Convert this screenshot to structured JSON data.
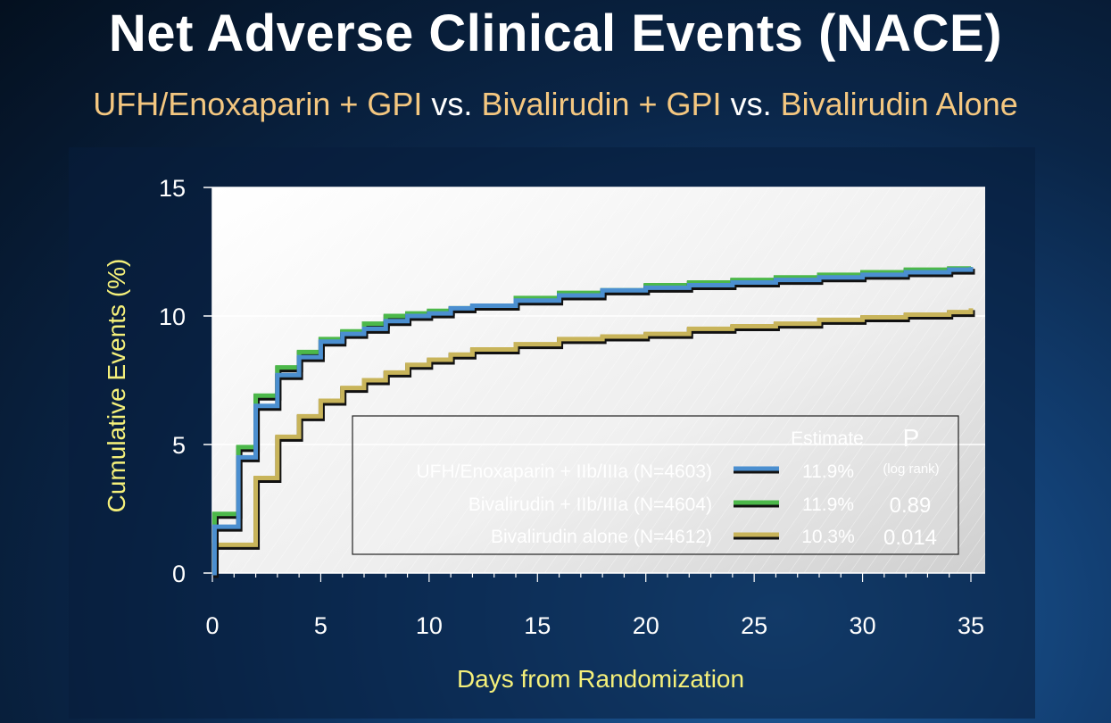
{
  "title": "Net Adverse Clinical Events (NACE)",
  "subtitle": {
    "part1": "UFH/Enoxaparin + GPI",
    "vs1": " vs. ",
    "part2": "Bivalirudin + GPI",
    "vs2": " vs. ",
    "part3": "Bivalirudin Alone"
  },
  "colors": {
    "ufh": "#4b8fd0",
    "biv_gpi": "#4cb84a",
    "biv_alone": "#c8b45a",
    "axis_label": "#f5f07a"
  },
  "legend": {
    "header_estimate": "Estimate",
    "header_p": "P",
    "header_p_sub": "(log rank)",
    "rows": [
      {
        "label": "UFH/Enoxaparin + IIb/IIIa (N=4603)",
        "estimate": "11.9%",
        "p": ""
      },
      {
        "label": "Bivalirudin + IIb/IIIa (N=4604)",
        "estimate": "11.9%",
        "p": "0.89"
      },
      {
        "label": "Bivalirudin alone (N=4612)",
        "estimate": "10.3%",
        "p": "0.014"
      }
    ]
  },
  "chart_data": {
    "type": "line",
    "xlabel": "Days from Randomization",
    "ylabel": "Cumulative Events (%)",
    "xlim": [
      0,
      35
    ],
    "ylim": [
      0,
      15
    ],
    "xticks": [
      0,
      5,
      10,
      15,
      20,
      25,
      30,
      35
    ],
    "yticks": [
      0,
      5,
      10,
      15
    ],
    "grid": "horizontal",
    "legend_position": "bottom-right",
    "series": [
      {
        "name": "UFH/Enoxaparin + IIb/IIIa (N=4603)",
        "x": [
          0,
          0.1,
          1,
          1.2,
          2,
          3,
          4,
          5,
          6,
          7,
          8,
          9,
          10,
          11,
          12,
          14,
          16,
          18,
          20,
          22,
          24,
          26,
          28,
          30,
          32,
          34,
          35
        ],
        "y": [
          0,
          1.8,
          1.8,
          4.5,
          6.5,
          7.7,
          8.4,
          9.0,
          9.3,
          9.5,
          9.8,
          10.0,
          10.1,
          10.3,
          10.4,
          10.6,
          10.8,
          11.0,
          11.1,
          11.2,
          11.3,
          11.4,
          11.5,
          11.6,
          11.7,
          11.8,
          11.9
        ]
      },
      {
        "name": "Bivalirudin + IIb/IIIa (N=4604)",
        "x": [
          0,
          0.1,
          1,
          1.2,
          2,
          3,
          4,
          5,
          6,
          7,
          8,
          9,
          10,
          11,
          12,
          14,
          16,
          18,
          20,
          22,
          24,
          26,
          28,
          30,
          32,
          34,
          35
        ],
        "y": [
          0,
          2.3,
          2.3,
          4.9,
          6.9,
          8.0,
          8.6,
          9.1,
          9.4,
          9.7,
          10.0,
          10.1,
          10.2,
          10.3,
          10.4,
          10.7,
          10.9,
          11.0,
          11.2,
          11.3,
          11.4,
          11.5,
          11.6,
          11.7,
          11.8,
          11.85,
          11.9
        ]
      },
      {
        "name": "Bivalirudin alone (N=4612)",
        "x": [
          0,
          0.1,
          1,
          2,
          3,
          4,
          5,
          6,
          7,
          8,
          9,
          10,
          11,
          12,
          14,
          16,
          18,
          20,
          22,
          24,
          26,
          28,
          30,
          32,
          34,
          35
        ],
        "y": [
          0,
          1.1,
          1.1,
          3.7,
          5.3,
          6.1,
          6.7,
          7.2,
          7.5,
          7.8,
          8.1,
          8.3,
          8.5,
          8.7,
          8.9,
          9.1,
          9.2,
          9.3,
          9.5,
          9.6,
          9.7,
          9.85,
          9.95,
          10.05,
          10.15,
          10.3
        ]
      }
    ]
  }
}
